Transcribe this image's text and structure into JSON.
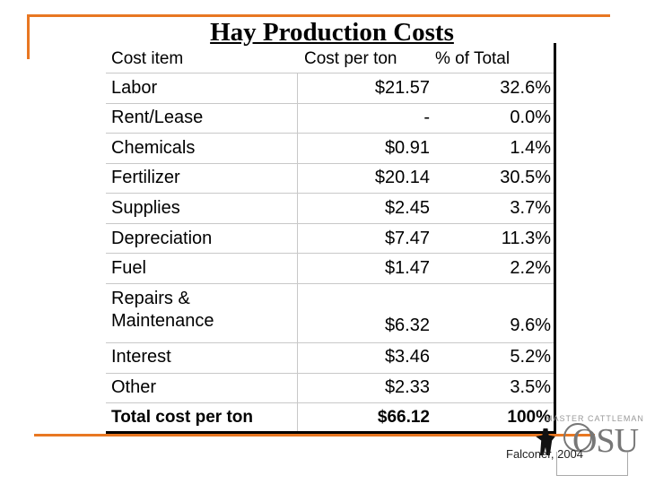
{
  "title": "Hay Production Costs",
  "headers": {
    "item": "Cost item",
    "cost": "Cost per ton",
    "pct": "% of Total"
  },
  "rows": [
    {
      "label": "Labor",
      "cost": "$21.57",
      "pct": "32.6%"
    },
    {
      "label": "Rent/Lease",
      "cost": "-",
      "pct": "0.0%"
    },
    {
      "label": "Chemicals",
      "cost": "$0.91",
      "pct": "1.4%"
    },
    {
      "label": "Fertilizer",
      "cost": "$20.14",
      "pct": "30.5%"
    },
    {
      "label": "Supplies",
      "cost": "$2.45",
      "pct": "3.7%"
    },
    {
      "label": "Depreciation",
      "cost": "$7.47",
      "pct": "11.3%"
    },
    {
      "label": "Fuel",
      "cost": "$1.47",
      "pct": "2.2%"
    },
    {
      "label": "Repairs &",
      "label2": "Maintenance",
      "cost": "$6.32",
      "pct": "9.6%"
    },
    {
      "label": "Interest",
      "cost": "$3.46",
      "pct": "5.2%"
    },
    {
      "label": "Other",
      "cost": "$2.33",
      "pct": "3.5%"
    }
  ],
  "total": {
    "label": "Total cost per ton",
    "cost": "$66.12",
    "pct": "100%"
  },
  "logo": {
    "banner": "MASTER CATTLEMAN",
    "text": "OSU"
  },
  "credit": "Falconer, 2004",
  "colors": {
    "accent": "#e87722"
  }
}
